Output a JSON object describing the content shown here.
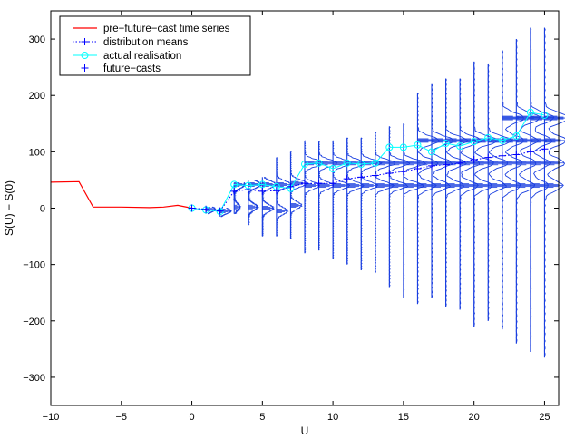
{
  "chart_data": {
    "type": "line",
    "xlabel": "U",
    "ylabel": "S(U) − S(0)",
    "xlim": [
      -10,
      26
    ],
    "ylim": [
      -350,
      350
    ],
    "xticks": [
      -10,
      -5,
      0,
      5,
      10,
      15,
      20,
      25
    ],
    "yticks": [
      -300,
      -200,
      -100,
      0,
      100,
      200,
      300
    ],
    "xtick_labels": [
      "−10",
      "−5",
      "0",
      "5",
      "10",
      "15",
      "20",
      "25"
    ],
    "ytick_labels": [
      "−300",
      "−200",
      "−100",
      "0",
      "100",
      "200",
      "300"
    ],
    "grid": false,
    "legend_position": "top-left",
    "colors": {
      "pre": "#ff0000",
      "means": "#0000ff",
      "actual": "#00ffff",
      "forecast": "#0000ff",
      "dist": "#1a3fe0"
    },
    "series": [
      {
        "name": "pre−future−cast time series",
        "style": "red-solid",
        "x": [
          -10,
          -8,
          -7,
          -5,
          -3,
          -2,
          -1,
          0
        ],
        "y": [
          46,
          47,
          2,
          2,
          1,
          2,
          5,
          0
        ]
      },
      {
        "name": "distribution means",
        "style": "blue-dotted-plus",
        "x": [
          0,
          1,
          2,
          3,
          4,
          5,
          6,
          7,
          8,
          9,
          10,
          11,
          12,
          13,
          14,
          15,
          16,
          17,
          18,
          19,
          20,
          21,
          22,
          23,
          24,
          25
        ],
        "y": [
          0,
          -2,
          -5,
          30,
          33,
          30,
          31,
          38,
          44,
          44,
          44,
          52,
          55,
          58,
          62,
          65,
          70,
          75,
          77,
          80,
          86,
          90,
          93,
          95,
          100,
          105
        ]
      },
      {
        "name": "actual realisation",
        "style": "cyan-circle",
        "x": [
          0,
          1,
          2,
          3,
          4,
          5,
          6,
          7,
          8,
          9,
          10,
          11,
          12,
          13,
          14,
          15,
          16,
          17,
          18,
          19,
          20,
          21,
          22,
          23,
          24,
          25
        ],
        "y": [
          0,
          -3,
          -6,
          42,
          40,
          42,
          38,
          35,
          78,
          80,
          70,
          80,
          78,
          80,
          108,
          108,
          112,
          100,
          115,
          110,
          118,
          125,
          120,
          128,
          170,
          165
        ]
      },
      {
        "name": "future−casts",
        "style": "blue-plus"
      }
    ],
    "distributions": [
      {
        "x": 1,
        "top": 2,
        "bottom": -10,
        "peaks": [
          [
            -2,
            10
          ]
        ]
      },
      {
        "x": 2,
        "top": 0,
        "bottom": -15,
        "peaks": [
          [
            -5,
            12
          ]
        ]
      },
      {
        "x": 3,
        "top": 45,
        "bottom": -10,
        "peaks": [
          [
            42,
            12
          ],
          [
            2,
            6
          ]
        ]
      },
      {
        "x": 4,
        "top": 50,
        "bottom": -30,
        "peaks": [
          [
            42,
            14
          ],
          [
            2,
            10
          ]
        ]
      },
      {
        "x": 5,
        "top": 55,
        "bottom": -50,
        "peaks": [
          [
            42,
            15
          ],
          [
            0,
            12
          ]
        ]
      },
      {
        "x": 6,
        "top": 90,
        "bottom": -50,
        "peaks": [
          [
            42,
            16
          ],
          [
            -5,
            12
          ]
        ]
      },
      {
        "x": 7,
        "top": 100,
        "bottom": -55,
        "peaks": [
          [
            44,
            18
          ],
          [
            5,
            12
          ]
        ]
      },
      {
        "x": 8,
        "top": 120,
        "bottom": -80,
        "peaks": [
          [
            80,
            20
          ],
          [
            40,
            16
          ]
        ]
      },
      {
        "x": 9,
        "top": 118,
        "bottom": -75,
        "peaks": [
          [
            80,
            20
          ],
          [
            40,
            16
          ]
        ]
      },
      {
        "x": 10,
        "top": 120,
        "bottom": -90,
        "peaks": [
          [
            80,
            20
          ],
          [
            40,
            18
          ]
        ]
      },
      {
        "x": 11,
        "top": 125,
        "bottom": -100,
        "peaks": [
          [
            80,
            20
          ],
          [
            40,
            18
          ]
        ]
      },
      {
        "x": 12,
        "top": 125,
        "bottom": -110,
        "peaks": [
          [
            80,
            22
          ],
          [
            40,
            18
          ]
        ]
      },
      {
        "x": 13,
        "top": 135,
        "bottom": -115,
        "peaks": [
          [
            80,
            22
          ],
          [
            40,
            20
          ]
        ]
      },
      {
        "x": 14,
        "top": 145,
        "bottom": -140,
        "peaks": [
          [
            80,
            22
          ],
          [
            40,
            20
          ]
        ]
      },
      {
        "x": 15,
        "top": 150,
        "bottom": -160,
        "peaks": [
          [
            80,
            24
          ],
          [
            40,
            22
          ]
        ]
      },
      {
        "x": 16,
        "top": 205,
        "bottom": -170,
        "peaks": [
          [
            120,
            24
          ],
          [
            80,
            22
          ],
          [
            40,
            20
          ]
        ]
      },
      {
        "x": 17,
        "top": 220,
        "bottom": -160,
        "peaks": [
          [
            120,
            24
          ],
          [
            80,
            22
          ],
          [
            40,
            20
          ]
        ]
      },
      {
        "x": 18,
        "top": 230,
        "bottom": -175,
        "peaks": [
          [
            120,
            24
          ],
          [
            80,
            22
          ],
          [
            40,
            20
          ]
        ]
      },
      {
        "x": 19,
        "top": 230,
        "bottom": -180,
        "peaks": [
          [
            120,
            24
          ],
          [
            80,
            22
          ],
          [
            40,
            20
          ]
        ]
      },
      {
        "x": 20,
        "top": 260,
        "bottom": -210,
        "peaks": [
          [
            120,
            26
          ],
          [
            80,
            22
          ],
          [
            40,
            20
          ]
        ]
      },
      {
        "x": 21,
        "top": 255,
        "bottom": -200,
        "peaks": [
          [
            120,
            26
          ],
          [
            80,
            22
          ],
          [
            40,
            20
          ]
        ]
      },
      {
        "x": 22,
        "top": 280,
        "bottom": -215,
        "peaks": [
          [
            160,
            24
          ],
          [
            120,
            24
          ],
          [
            80,
            22
          ],
          [
            40,
            20
          ]
        ]
      },
      {
        "x": 23,
        "top": 300,
        "bottom": -240,
        "peaks": [
          [
            160,
            26
          ],
          [
            120,
            24
          ],
          [
            80,
            22
          ],
          [
            40,
            20
          ]
        ]
      },
      {
        "x": 24,
        "top": 320,
        "bottom": -255,
        "peaks": [
          [
            160,
            26
          ],
          [
            120,
            24
          ],
          [
            80,
            22
          ],
          [
            40,
            20
          ]
        ]
      },
      {
        "x": 25,
        "top": 320,
        "bottom": -265,
        "peaks": [
          [
            160,
            28
          ],
          [
            120,
            24
          ],
          [
            80,
            22
          ],
          [
            40,
            20
          ]
        ]
      }
    ]
  }
}
